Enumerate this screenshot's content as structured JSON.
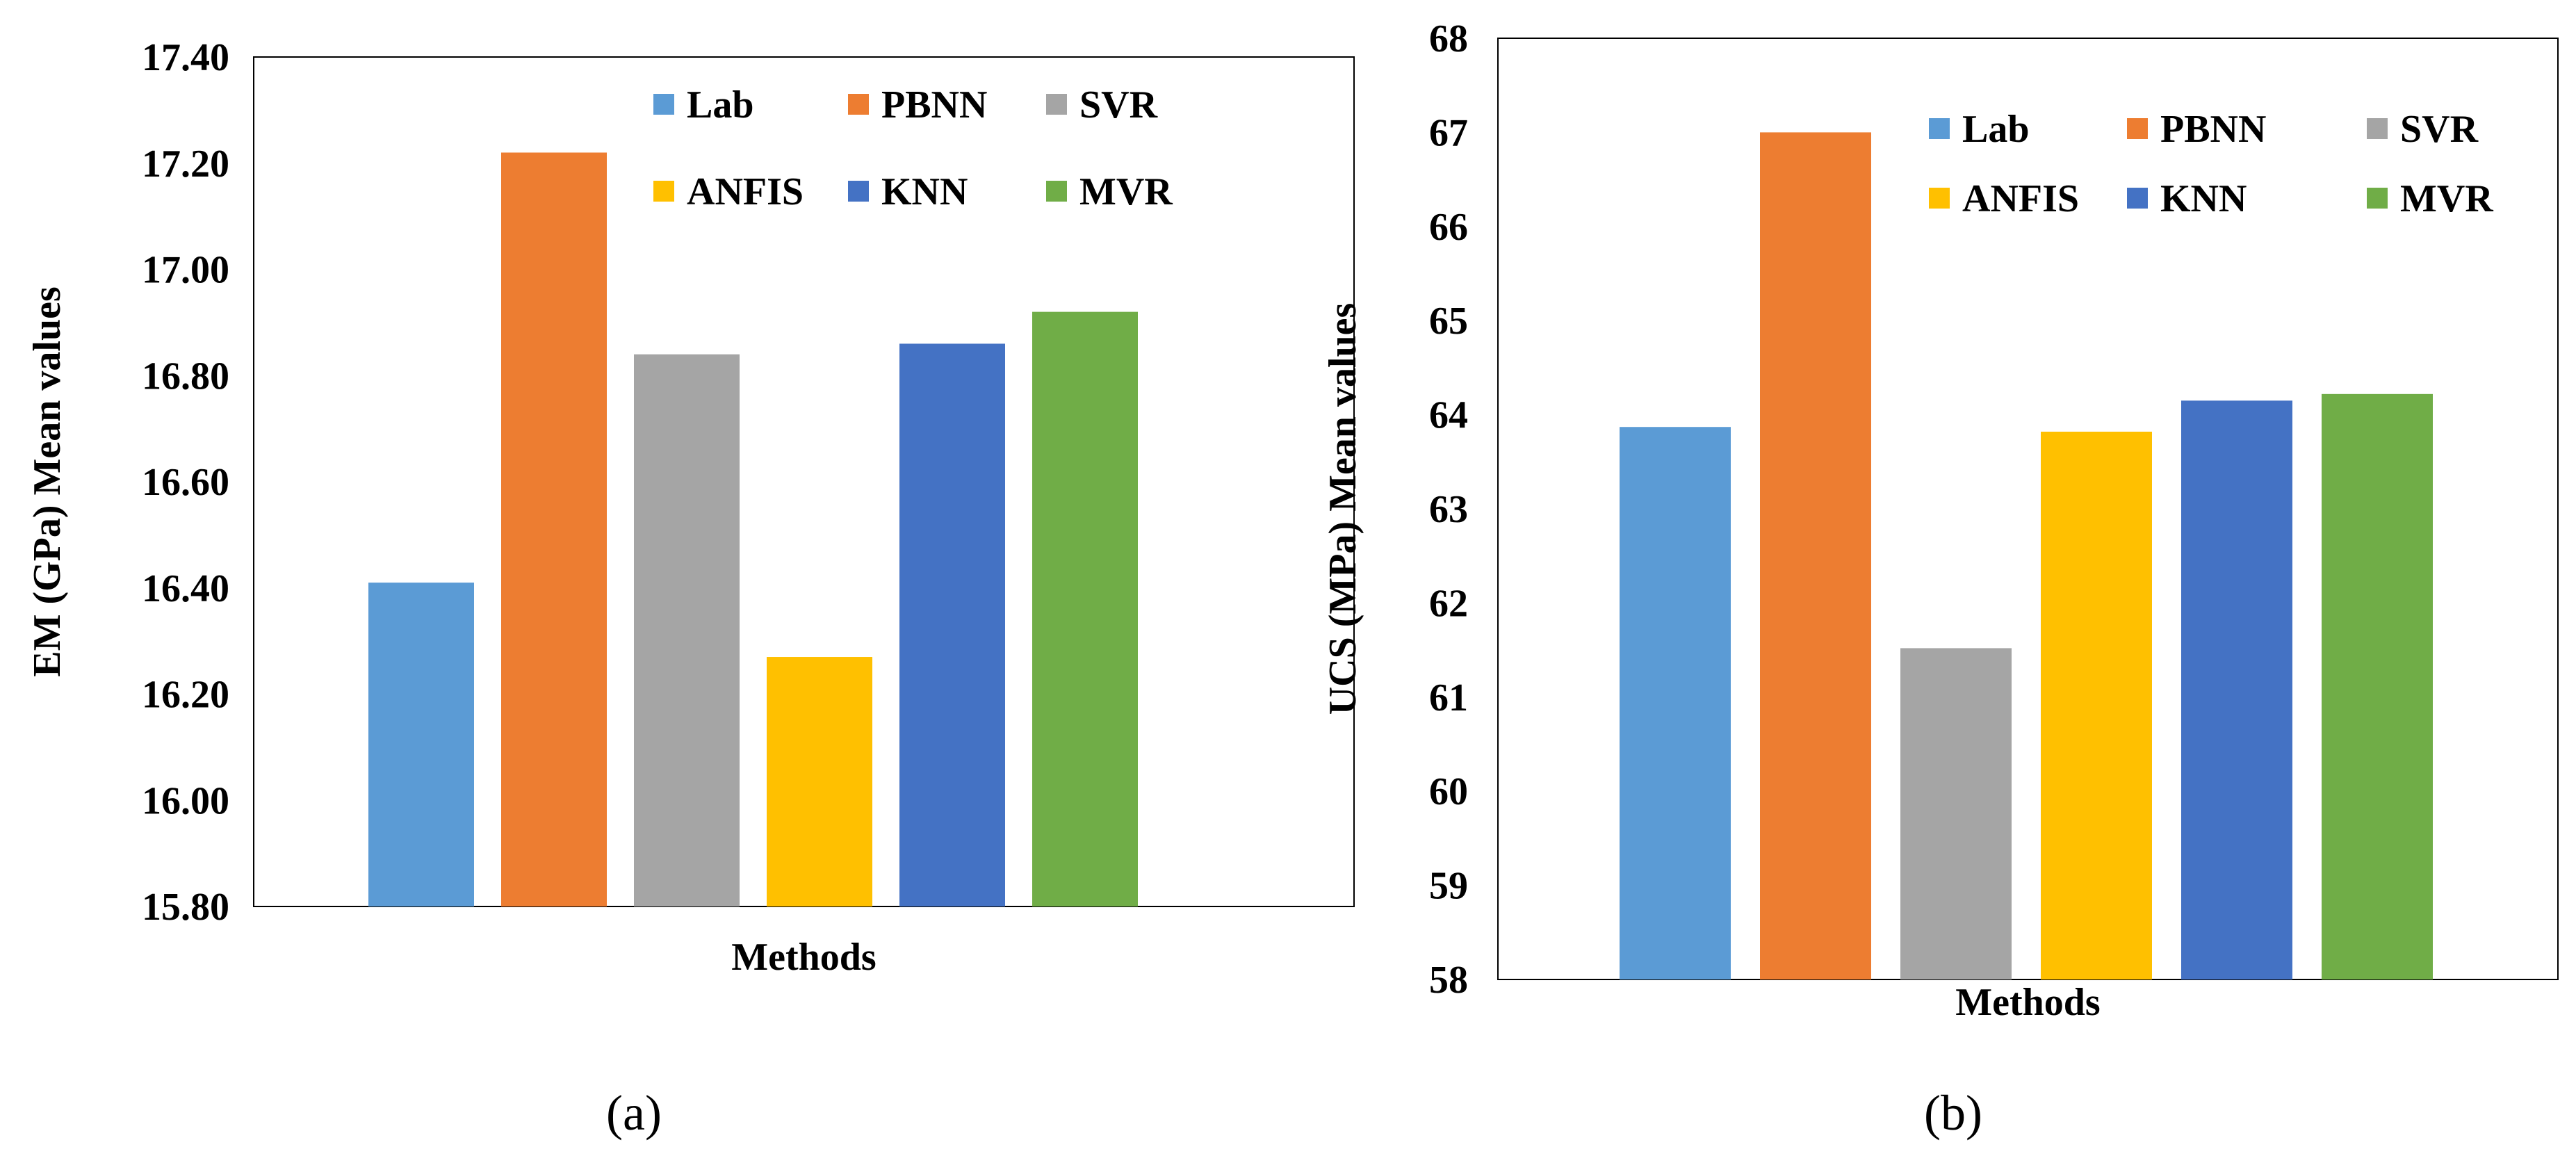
{
  "chart_data": [
    {
      "type": "bar",
      "panel": "a",
      "caption": "(a)",
      "xlabel": "Methods",
      "ylabel": "EM (GPa) Mean values",
      "ylim": [
        15.8,
        17.4
      ],
      "ytick_step": 0.2,
      "ytick_labels": [
        "15.80",
        "16.00",
        "16.20",
        "16.40",
        "16.60",
        "16.80",
        "17.00",
        "17.20",
        "17.40"
      ],
      "grid": false,
      "legend": "top",
      "series": [
        {
          "name": "Lab",
          "value": 16.41,
          "color": "#5B9BD5"
        },
        {
          "name": "PBNN",
          "value": 17.22,
          "color": "#ED7D31"
        },
        {
          "name": "SVR",
          "value": 16.84,
          "color": "#A5A5A5"
        },
        {
          "name": "ANFIS",
          "value": 16.27,
          "color": "#FFC000"
        },
        {
          "name": "KNN",
          "value": 16.86,
          "color": "#4472C4"
        },
        {
          "name": "MVR",
          "value": 16.92,
          "color": "#70AD47"
        }
      ]
    },
    {
      "type": "bar",
      "panel": "b",
      "caption": "(b)",
      "xlabel": "Methods",
      "ylabel": "UCS (MPa) Mean values",
      "ylim": [
        58,
        68
      ],
      "ytick_step": 1,
      "ytick_labels": [
        "58",
        "59",
        "60",
        "61",
        "62",
        "63",
        "64",
        "65",
        "66",
        "67",
        "68"
      ],
      "grid": false,
      "legend": "top",
      "series": [
        {
          "name": "Lab",
          "value": 63.87,
          "color": "#5B9BD5"
        },
        {
          "name": "PBNN",
          "value": 67.0,
          "color": "#ED7D31"
        },
        {
          "name": "SVR",
          "value": 61.52,
          "color": "#A5A5A5"
        },
        {
          "name": "ANFIS",
          "value": 63.82,
          "color": "#FFC000"
        },
        {
          "name": "KNN",
          "value": 64.15,
          "color": "#4472C4"
        },
        {
          "name": "MVR",
          "value": 64.22,
          "color": "#70AD47"
        }
      ]
    }
  ]
}
